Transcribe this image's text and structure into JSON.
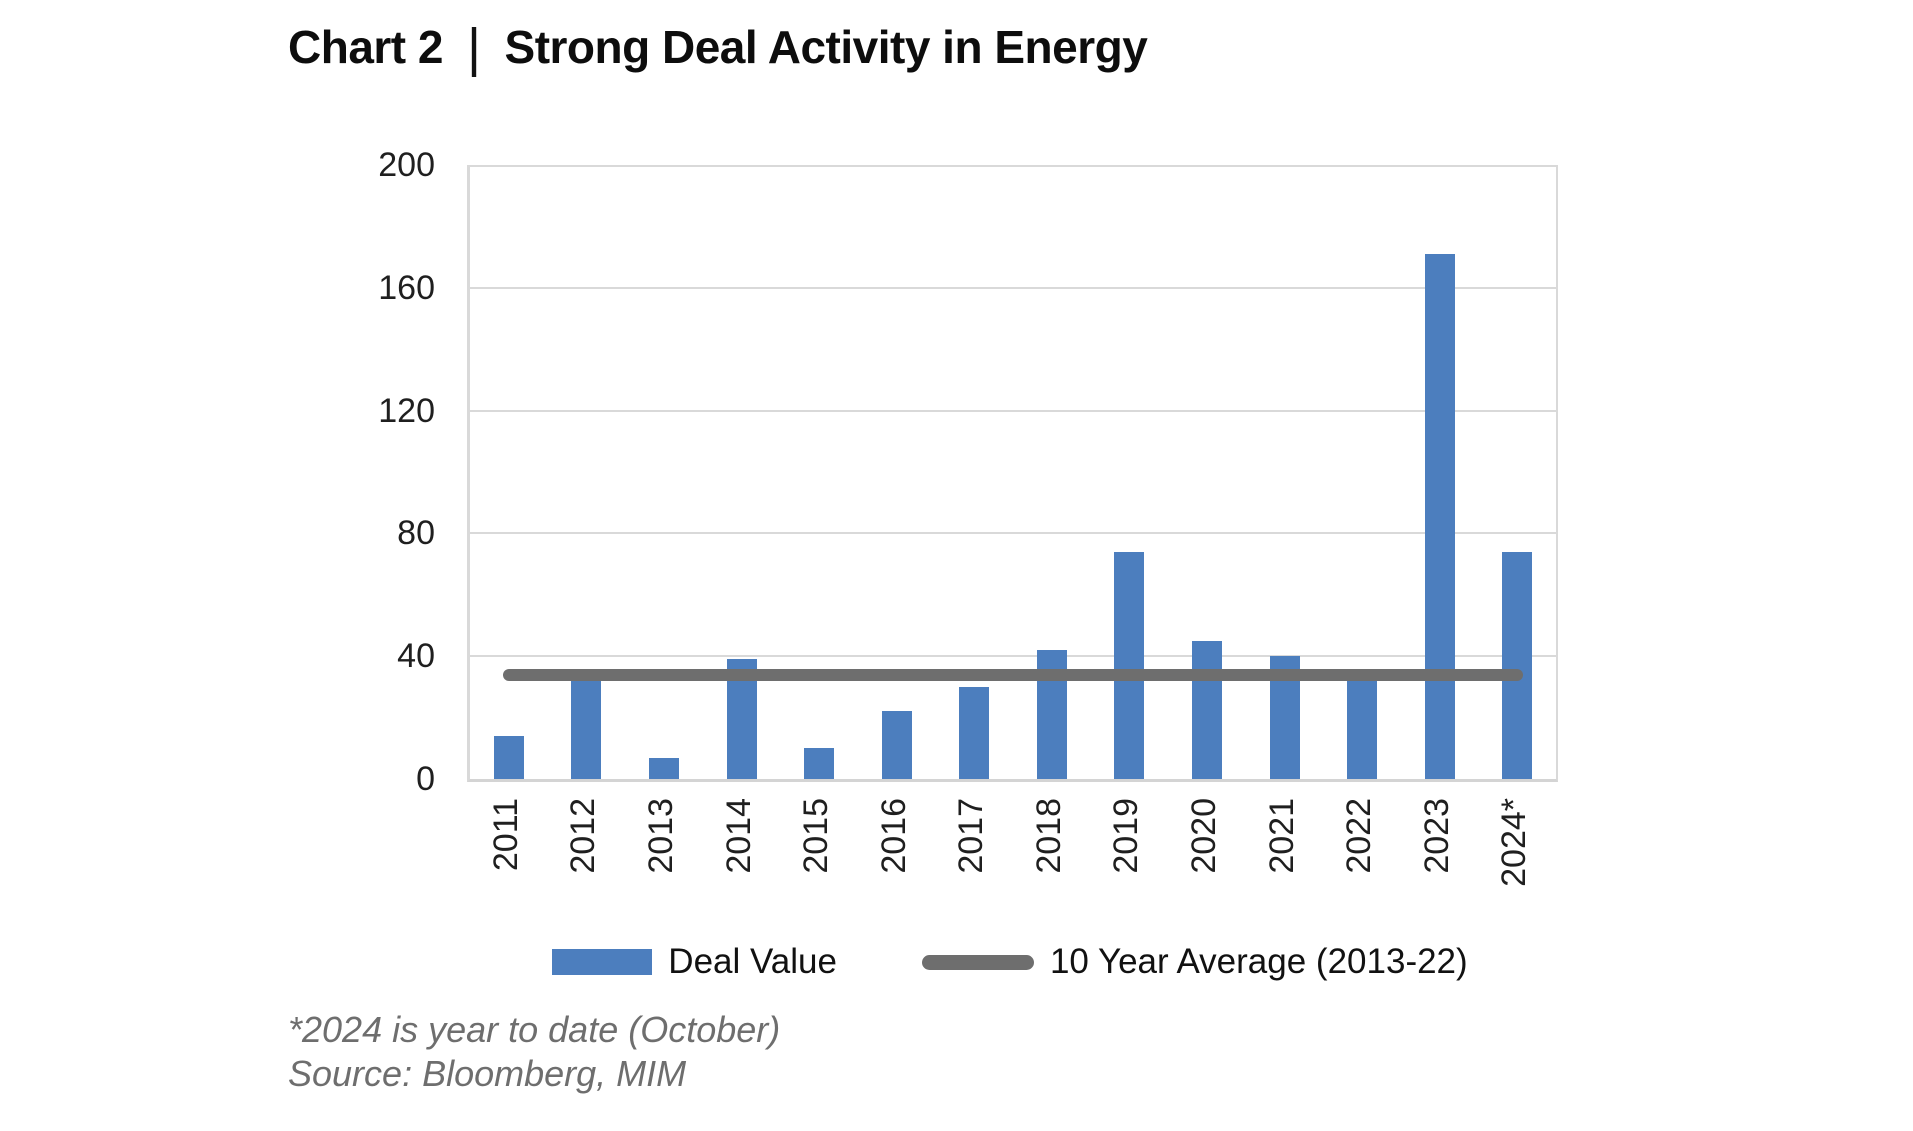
{
  "title": {
    "prefix": "Chart 2",
    "separator": "|",
    "main": "Strong Deal Activity in Energy"
  },
  "legend": {
    "deal_value": "Deal Value",
    "average": "10 Year Average (2013-22)"
  },
  "footnotes": [
    "*2024 is year to date (October)",
    "Source: Bloomberg, MIM"
  ],
  "colors": {
    "bar": "#4C7EBE",
    "average_line": "#6E6E6E",
    "grid": "#D9D9D9",
    "title_text": "#0D0D0D",
    "axis_text": "#1F1F1F",
    "footnote_text": "#6E6E6E"
  },
  "chart_data": {
    "type": "bar",
    "title": "Chart 2 | Strong Deal Activity in Energy",
    "categories": [
      "2011",
      "2012",
      "2013",
      "2014",
      "2015",
      "2016",
      "2017",
      "2018",
      "2019",
      "2020",
      "2021",
      "2022",
      "2023",
      "2024*"
    ],
    "series": [
      {
        "name": "Deal Value",
        "type": "bar",
        "color": "#4C7EBE",
        "values": [
          14,
          33,
          7,
          39,
          10,
          22,
          30,
          42,
          74,
          45,
          40,
          33,
          171,
          74
        ]
      },
      {
        "name": "10 Year Average (2013-22)",
        "type": "line",
        "color": "#6E6E6E",
        "value": 34
      }
    ],
    "ylim": [
      0,
      200
    ],
    "yticks": [
      0,
      40,
      80,
      120,
      160,
      200
    ],
    "xlabel": "",
    "ylabel": "",
    "grid": "horizontal",
    "legend_position": "bottom",
    "x_tick_rotation": -90
  }
}
